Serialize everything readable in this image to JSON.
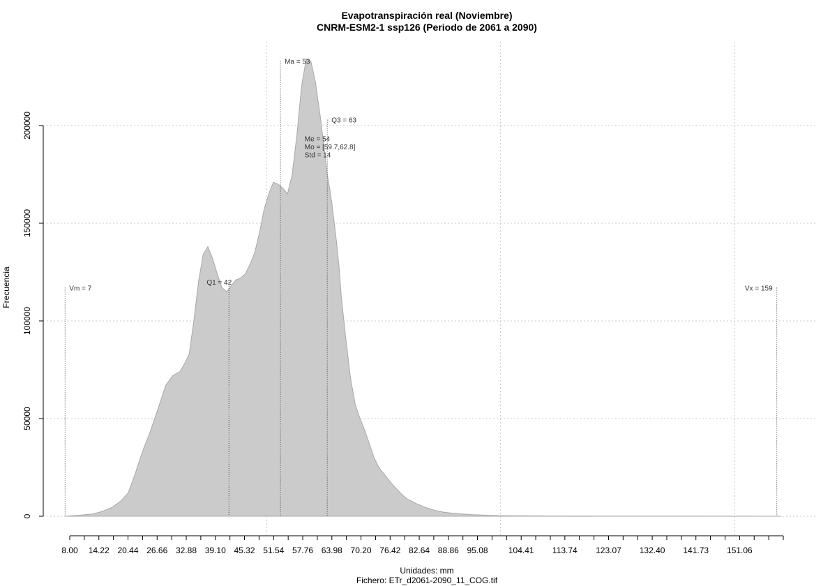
{
  "chart_data": {
    "type": "area",
    "title": "Evapotranspiración real (Noviembre)",
    "subtitle": "CNRM-ESM2-1 ssp126 (Periodo de 2061 a 2090)",
    "xlabel": "Unidades: mm",
    "ylabel": "Frecuencia",
    "footer": "Fichero: ETr_d2061-2090_11_COG.tif",
    "xlim": [
      7,
      161
    ],
    "ylim": [
      0,
      240000
    ],
    "grid": true,
    "x_ticks_minor": [
      8.0,
      11.11,
      14.22,
      17.33,
      20.44,
      23.55,
      26.66,
      29.77,
      32.88,
      35.99,
      39.1,
      42.21,
      45.32,
      48.43,
      51.54,
      54.65,
      57.76,
      60.87,
      63.98,
      67.09,
      70.2,
      73.31,
      76.42,
      79.53,
      82.64,
      85.75,
      88.86,
      91.97,
      95.08,
      98.19,
      101.3,
      104.41,
      107.52,
      110.63,
      113.74,
      116.85,
      119.96,
      123.07,
      126.18,
      129.29,
      132.4,
      135.51,
      138.62,
      141.73,
      144.84,
      147.95,
      151.06,
      154.17,
      157.28,
      160.39
    ],
    "x_tick_labels": [
      "8.00",
      "14.22",
      "20.44",
      "26.66",
      "32.88",
      "39.10",
      "45.32",
      "51.54",
      "57.76",
      "63.98",
      "70.20",
      "76.42",
      "82.64",
      "88.86",
      "95.08",
      "104.41",
      "113.74",
      "123.07",
      "132.40",
      "141.73",
      "151.06"
    ],
    "x_tick_values": [
      8.0,
      14.22,
      20.44,
      26.66,
      32.88,
      39.1,
      45.32,
      51.54,
      57.76,
      63.98,
      70.2,
      76.42,
      82.64,
      88.86,
      95.08,
      104.41,
      113.74,
      123.07,
      132.4,
      141.73,
      151.06
    ],
    "y_ticks": [
      0,
      50000,
      100000,
      150000,
      200000
    ],
    "y_tick_labels": [
      "0",
      "50000",
      "100000",
      "150000",
      "200000"
    ],
    "x_gridlines": [
      50,
      100,
      150
    ],
    "y_gridlines": [
      0,
      50000,
      100000,
      150000,
      200000
    ],
    "density": {
      "x": [
        7,
        10,
        13,
        15,
        17,
        19,
        20.5,
        22,
        23.5,
        25,
        27,
        28.5,
        30,
        31.5,
        32.5,
        33.5,
        34.5,
        35.5,
        36.5,
        37.5,
        38.5,
        39.5,
        40.5,
        41.5,
        42.5,
        43.5,
        44.5,
        45.5,
        46.5,
        47.5,
        48.5,
        49.5,
        50.5,
        51.5,
        52.5,
        53.5,
        54.5,
        55.5,
        56.5,
        57.5,
        58.5,
        59.5,
        60.5,
        61,
        61.5,
        62,
        62.5,
        63,
        63.5,
        64,
        64.5,
        65,
        65.5,
        66,
        67,
        68,
        69,
        70,
        71,
        72,
        73,
        74,
        75,
        76,
        77,
        78,
        79,
        80,
        82,
        84,
        86,
        88,
        90,
        92,
        94,
        96,
        98,
        100,
        105,
        110,
        120,
        130,
        140,
        150,
        160
      ],
      "y": [
        0,
        500,
        1200,
        2500,
        4500,
        8000,
        12000,
        22000,
        33000,
        42000,
        56000,
        67000,
        72000,
        74000,
        78000,
        83000,
        100000,
        120000,
        134000,
        138000,
        132000,
        124000,
        117000,
        115000,
        118000,
        121000,
        122000,
        124000,
        129000,
        135000,
        145000,
        157000,
        165000,
        171000,
        170000,
        168000,
        165000,
        175000,
        195000,
        220000,
        234000,
        233000,
        222000,
        213000,
        205000,
        195000,
        185000,
        175000,
        168000,
        160000,
        150000,
        140000,
        128000,
        112000,
        90000,
        70000,
        57000,
        50000,
        44000,
        37000,
        30000,
        25000,
        22000,
        19000,
        16000,
        13500,
        11000,
        9000,
        6500,
        4500,
        3000,
        2000,
        1500,
        1100,
        800,
        600,
        400,
        300,
        200,
        150,
        100,
        80,
        60,
        40,
        0
      ]
    },
    "annotations": [
      {
        "label": "Vm = 7",
        "x": 7,
        "y_top": 117000
      },
      {
        "label": "Q1 = 42",
        "x": 42,
        "y_top": 120000
      },
      {
        "label": "Ma = 53",
        "x": 53,
        "y_top": 233000
      },
      {
        "label": "Q3 = 63",
        "x": 63,
        "y_top": 203000
      },
      {
        "label": "Vx = 159",
        "x": 159,
        "y_top": 117000
      }
    ],
    "stats_block": [
      "Me = 54",
      "Mo = [59.7,62.8]",
      "Std = 14"
    ]
  }
}
